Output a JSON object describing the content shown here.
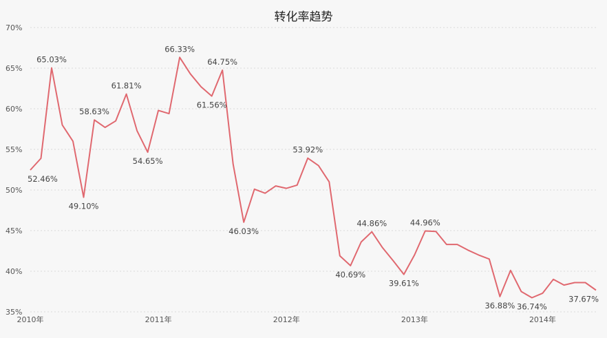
{
  "chart_data": {
    "type": "line",
    "title": "转化率趋势",
    "xlabel": "",
    "ylabel": "",
    "ylim": [
      35,
      70
    ],
    "y_ticks": [
      {
        "v": 70,
        "label": "70%"
      },
      {
        "v": 65,
        "label": "65%"
      },
      {
        "v": 60,
        "label": "60%"
      },
      {
        "v": 55,
        "label": "55%"
      },
      {
        "v": 50,
        "label": "50%"
      },
      {
        "v": 45,
        "label": "45%"
      },
      {
        "v": 40,
        "label": "40%"
      },
      {
        "v": 35,
        "label": "35%"
      }
    ],
    "x_ticks": [
      {
        "i": 0,
        "label": "2010年"
      },
      {
        "i": 12,
        "label": "2011年"
      },
      {
        "i": 24,
        "label": "2012年"
      },
      {
        "i": 36,
        "label": "2013年"
      },
      {
        "i": 48,
        "label": "2014年"
      }
    ],
    "grid": true,
    "line_color": "#e0686f",
    "series": [
      {
        "values": [
          52.46,
          53.9,
          65.03,
          58.0,
          56.0,
          49.1,
          58.63,
          57.7,
          58.5,
          61.81,
          57.3,
          54.65,
          59.8,
          59.4,
          66.33,
          64.3,
          62.7,
          61.56,
          64.75,
          53.2,
          46.03,
          50.1,
          49.6,
          50.5,
          50.2,
          50.6,
          53.92,
          53.0,
          51.0,
          41.9,
          40.69,
          43.6,
          44.86,
          42.9,
          41.3,
          39.61,
          42.0,
          44.96,
          44.9,
          43.3,
          43.3,
          42.6,
          42.0,
          41.5,
          36.88,
          40.1,
          37.5,
          36.74,
          37.3,
          39.0,
          38.3,
          38.6,
          38.6,
          37.67
        ]
      }
    ],
    "annotations": [
      {
        "i": 0,
        "label": "52.46%",
        "pos": "below"
      },
      {
        "i": 2,
        "label": "65.03%",
        "pos": "above"
      },
      {
        "i": 5,
        "label": "49.10%",
        "pos": "below"
      },
      {
        "i": 6,
        "label": "58.63%",
        "pos": "above"
      },
      {
        "i": 9,
        "label": "61.81%",
        "pos": "above"
      },
      {
        "i": 11,
        "label": "54.65%",
        "pos": "below"
      },
      {
        "i": 14,
        "label": "66.33%",
        "pos": "above"
      },
      {
        "i": 17,
        "label": "61.56%",
        "pos": "below"
      },
      {
        "i": 18,
        "label": "64.75%",
        "pos": "above"
      },
      {
        "i": 20,
        "label": "46.03%",
        "pos": "below"
      },
      {
        "i": 26,
        "label": "53.92%",
        "pos": "above"
      },
      {
        "i": 30,
        "label": "40.69%",
        "pos": "below"
      },
      {
        "i": 32,
        "label": "44.86%",
        "pos": "above"
      },
      {
        "i": 35,
        "label": "39.61%",
        "pos": "below"
      },
      {
        "i": 37,
        "label": "44.96%",
        "pos": "above"
      },
      {
        "i": 44,
        "label": "36.88%",
        "pos": "below"
      },
      {
        "i": 47,
        "label": "36.74%",
        "pos": "below"
      },
      {
        "i": 53,
        "label": "37.67%",
        "pos": "below"
      }
    ]
  }
}
